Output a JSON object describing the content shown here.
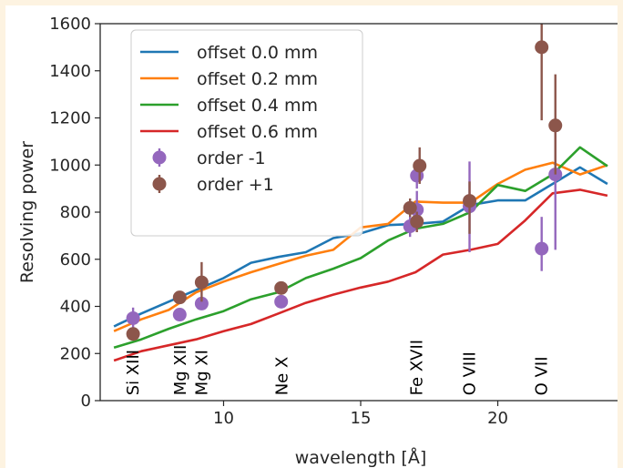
{
  "chart_data": {
    "type": "line",
    "title": "",
    "xlabel": "wavelength [Å]",
    "ylabel": "Resolving power",
    "xlim": [
      5.5,
      24.5
    ],
    "ylim": [
      0,
      1600
    ],
    "xticks": [
      10,
      15,
      20
    ],
    "yticks": [
      0,
      200,
      400,
      600,
      800,
      1000,
      1200,
      1400,
      1600
    ],
    "grid": false,
    "legend_position": "upper-left",
    "series": [
      {
        "name": "offset  0.0 mm",
        "color": "#1f77b4",
        "x": [
          6,
          7,
          8,
          9,
          10,
          11,
          12,
          13,
          14,
          15,
          16,
          17,
          18,
          19,
          20,
          21,
          22,
          23,
          24
        ],
        "y": [
          315,
          370,
          420,
          470,
          520,
          585,
          610,
          630,
          690,
          710,
          745,
          750,
          760,
          830,
          850,
          850,
          920,
          990,
          920
        ]
      },
      {
        "name": "offset  0.2 mm",
        "color": "#ff7f0e",
        "x": [
          6,
          7,
          8,
          9,
          10,
          11,
          12,
          13,
          14,
          15,
          16,
          17,
          18,
          19,
          20,
          21,
          22,
          23,
          24
        ],
        "y": [
          295,
          345,
          385,
          460,
          505,
          545,
          580,
          615,
          640,
          735,
          750,
          845,
          840,
          840,
          920,
          980,
          1010,
          960,
          1000
        ]
      },
      {
        "name": "offset  0.4 mm",
        "color": "#2ca02c",
        "x": [
          6,
          7,
          8,
          9,
          10,
          11,
          12,
          13,
          14,
          15,
          16,
          17,
          18,
          19,
          20,
          21,
          22,
          23,
          24
        ],
        "y": [
          225,
          260,
          305,
          345,
          380,
          430,
          460,
          520,
          560,
          605,
          680,
          730,
          750,
          800,
          915,
          890,
          960,
          1075,
          995
        ]
      },
      {
        "name": "offset  0.6 mm",
        "color": "#d62728",
        "x": [
          6,
          7,
          8,
          9,
          10,
          11,
          12,
          13,
          14,
          15,
          16,
          17,
          18,
          19,
          20,
          21,
          22,
          23,
          24
        ],
        "y": [
          170,
          210,
          235,
          260,
          295,
          325,
          370,
          415,
          450,
          480,
          505,
          545,
          620,
          640,
          665,
          765,
          880,
          895,
          870
        ]
      }
    ],
    "points": [
      {
        "name": "order -1",
        "color": "#9467bd",
        "data": [
          {
            "x": 6.7,
            "y": 350,
            "ylo": 305,
            "yhi": 395
          },
          {
            "x": 8.4,
            "y": 365,
            "ylo": 345,
            "yhi": 385
          },
          {
            "x": 9.2,
            "y": 412,
            "ylo": 400,
            "yhi": 425
          },
          {
            "x": 12.1,
            "y": 420,
            "ylo": 410,
            "yhi": 432
          },
          {
            "x": 16.8,
            "y": 740,
            "ylo": 695,
            "yhi": 785
          },
          {
            "x": 17.05,
            "y": 810,
            "ylo": 730,
            "yhi": 890
          },
          {
            "x": 17.05,
            "y": 955,
            "ylo": 900,
            "yhi": 1010
          },
          {
            "x": 18.97,
            "y": 825,
            "ylo": 630,
            "yhi": 1015
          },
          {
            "x": 21.6,
            "y": 645,
            "ylo": 550,
            "yhi": 780
          },
          {
            "x": 22.1,
            "y": 960,
            "ylo": 640,
            "yhi": 1200
          }
        ]
      },
      {
        "name": "order +1",
        "color": "#8c564b",
        "data": [
          {
            "x": 6.7,
            "y": 283,
            "ylo": 265,
            "yhi": 300
          },
          {
            "x": 8.4,
            "y": 438,
            "ylo": 420,
            "yhi": 455
          },
          {
            "x": 9.2,
            "y": 502,
            "ylo": 420,
            "yhi": 588
          },
          {
            "x": 12.1,
            "y": 478,
            "ylo": 460,
            "yhi": 495
          },
          {
            "x": 16.8,
            "y": 818,
            "ylo": 780,
            "yhi": 858
          },
          {
            "x": 17.05,
            "y": 760,
            "ylo": 715,
            "yhi": 802
          },
          {
            "x": 17.15,
            "y": 997,
            "ylo": 920,
            "yhi": 1075
          },
          {
            "x": 18.97,
            "y": 848,
            "ylo": 708,
            "yhi": 930
          },
          {
            "x": 21.6,
            "y": 1500,
            "ylo": 1190,
            "yhi": 1620
          },
          {
            "x": 22.1,
            "y": 1168,
            "ylo": 960,
            "yhi": 1385
          }
        ]
      }
    ],
    "line_markers": [
      {
        "label": "Si XIII",
        "x": 6.7
      },
      {
        "label": "Mg XII",
        "x": 8.42
      },
      {
        "label": "Mg XI",
        "x": 9.2
      },
      {
        "label": "Ne X",
        "x": 12.13
      },
      {
        "label": "Fe XVII",
        "x": 17.05
      },
      {
        "label": "O VIII",
        "x": 18.97
      },
      {
        "label": "O VII",
        "x": 21.6
      }
    ]
  }
}
